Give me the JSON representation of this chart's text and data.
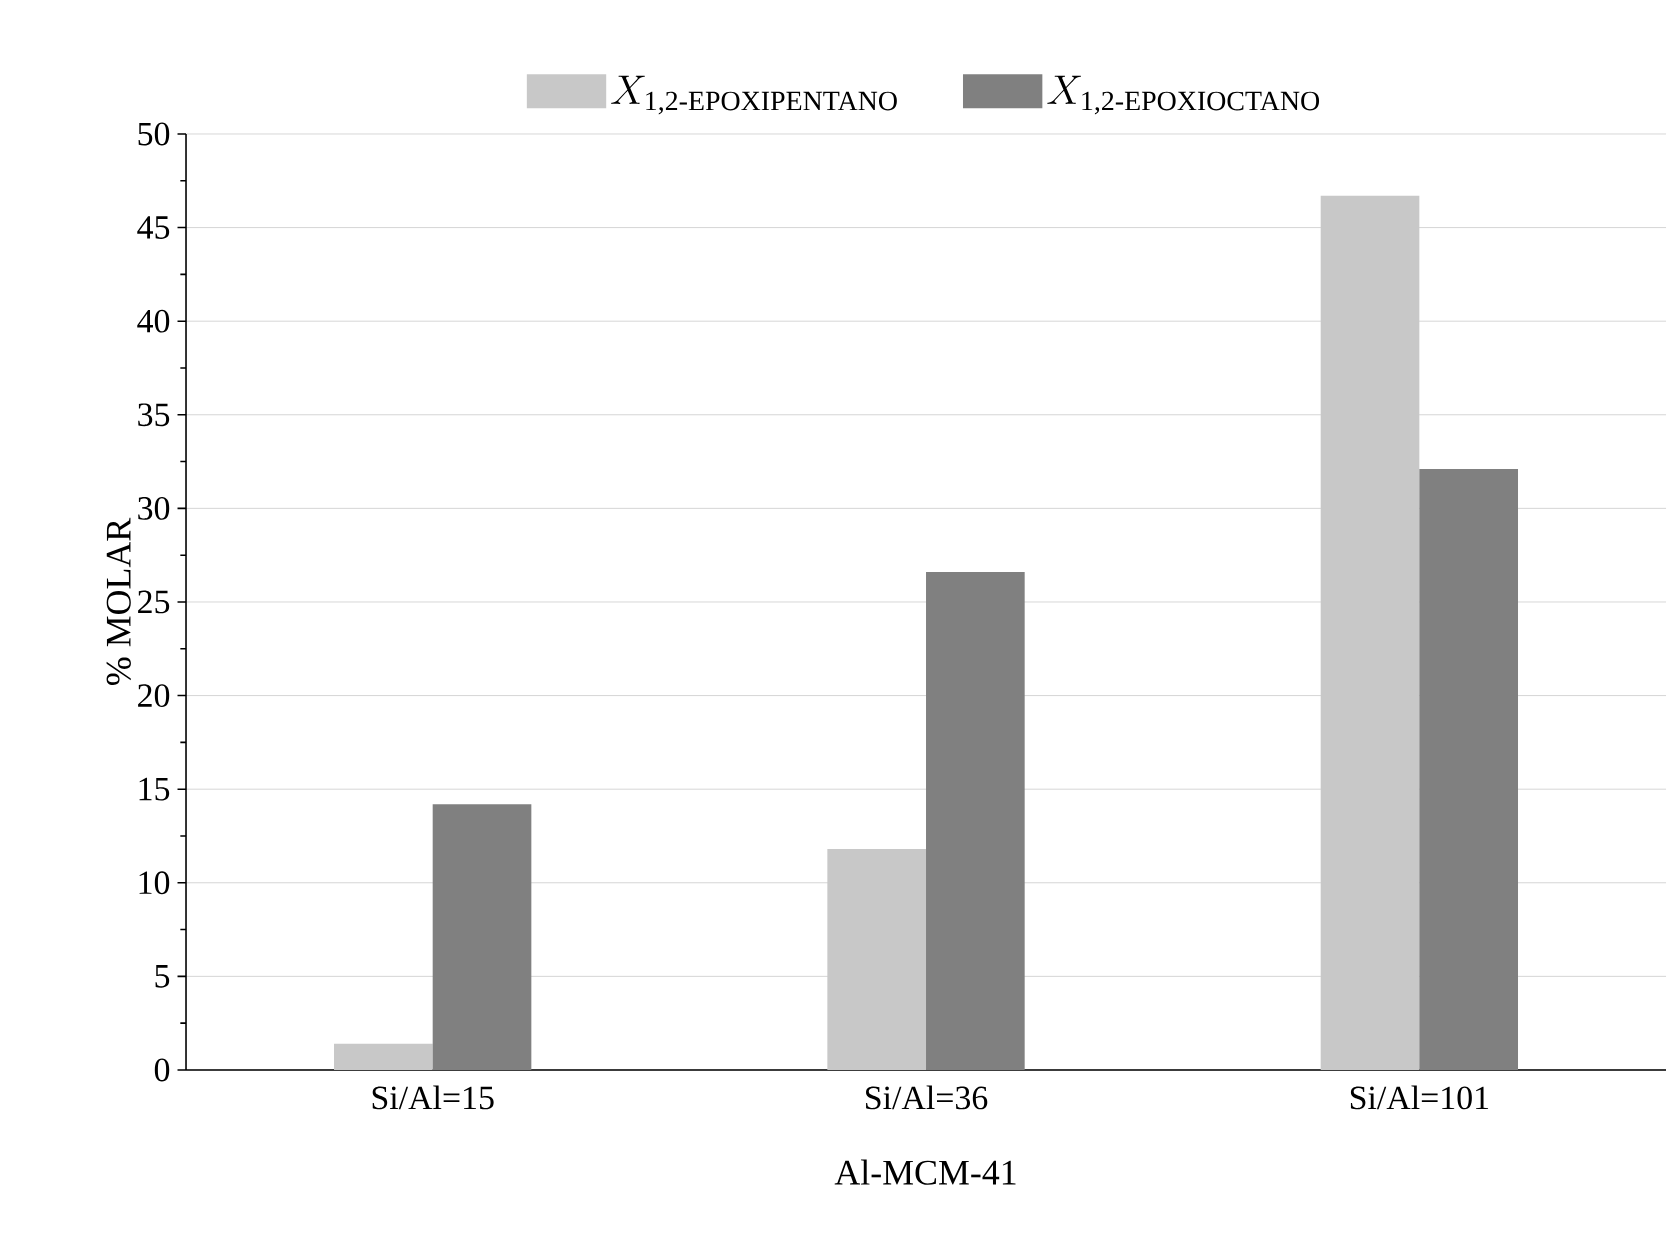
{
  "chart_data": {
    "type": "bar",
    "xlabel": "Al-MCM-41",
    "ylabel": "% MOLAR",
    "categories": [
      "Si/Al=15",
      "Si/Al=36",
      "Si/Al=101"
    ],
    "series": [
      {
        "name": "X_{\\text{1,2-EPOXIPENTANO}}",
        "color": "#c8c8c8",
        "values": [
          1.4,
          11.8,
          46.7
        ]
      },
      {
        "name": "X_{\\text{1,2-EPOXIOCTANO}}",
        "color": "#808080",
        "values": [
          14.2,
          26.6,
          32.1
        ]
      }
    ],
    "ylim": [
      0,
      50
    ],
    "yticks": [
      0,
      5,
      10,
      15,
      20,
      25,
      30,
      35,
      40,
      45,
      50
    ],
    "grid": "y",
    "legend": "top"
  }
}
